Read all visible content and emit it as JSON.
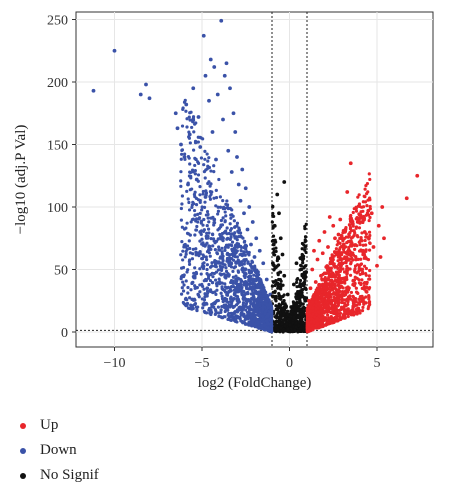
{
  "chart_data": {
    "type": "scatter",
    "title": "",
    "xlabel": "log2 (FoldChange)",
    "ylabel": "−log10 (adj.P Val)",
    "xlim": [
      -12.2,
      8.2
    ],
    "ylim": [
      -12,
      256
    ],
    "xticks": [
      -10,
      -5,
      0,
      5
    ],
    "xtick_labels": [
      "−10",
      "−5",
      "0",
      "5"
    ],
    "yticks": [
      0,
      50,
      100,
      150,
      200,
      250
    ],
    "ytick_labels": [
      "0",
      "50",
      "100",
      "150",
      "200",
      "250"
    ],
    "grid": true,
    "vlines": [
      -1,
      1
    ],
    "hlines": [
      1.3
    ],
    "legend_position": "bottom-left",
    "series": [
      {
        "name": "Up",
        "color": "#e8262b",
        "points": [
          [
            7.3,
            125
          ],
          [
            6.7,
            107
          ],
          [
            5.3,
            100
          ],
          [
            5.1,
            85
          ],
          [
            5.4,
            75
          ],
          [
            5.2,
            60
          ],
          [
            5.0,
            53
          ],
          [
            4.8,
            68
          ],
          [
            4.7,
            95
          ],
          [
            4.5,
            97
          ],
          [
            4.3,
            80
          ],
          [
            4.2,
            65
          ],
          [
            4.1,
            92
          ],
          [
            3.9,
            88
          ],
          [
            3.8,
            58
          ],
          [
            3.6,
            87
          ],
          [
            3.5,
            72
          ],
          [
            3.5,
            135
          ],
          [
            3.4,
            62
          ],
          [
            3.3,
            112
          ],
          [
            3.2,
            82
          ],
          [
            3.1,
            70
          ],
          [
            3.0,
            55
          ],
          [
            2.9,
            90
          ],
          [
            2.8,
            48
          ],
          [
            2.8,
            78
          ],
          [
            2.7,
            62
          ],
          [
            2.6,
            75
          ],
          [
            2.5,
            85
          ],
          [
            2.4,
            58
          ],
          [
            2.3,
            92
          ],
          [
            2.2,
            68
          ],
          [
            2.1,
            52
          ],
          [
            2.0,
            80
          ],
          [
            1.9,
            63
          ],
          [
            1.8,
            45
          ],
          [
            1.7,
            73
          ],
          [
            1.6,
            58
          ],
          [
            1.5,
            40
          ],
          [
            1.4,
            65
          ],
          [
            1.3,
            50
          ],
          [
            1.2,
            35
          ],
          [
            1.1,
            25
          ],
          [
            1.2,
            12
          ],
          [
            1.4,
            20
          ],
          [
            1.6,
            30
          ],
          [
            1.9,
            38
          ],
          [
            2.2,
            42
          ],
          [
            2.6,
            44
          ]
        ]
      },
      {
        "name": "Down",
        "color": "#3a52a8",
        "points": [
          [
            -11.2,
            193
          ],
          [
            -10.0,
            225
          ],
          [
            -8.5,
            190
          ],
          [
            -8.2,
            198
          ],
          [
            -8.0,
            187
          ],
          [
            -6.5,
            175
          ],
          [
            -6.4,
            163
          ],
          [
            -6.2,
            150
          ],
          [
            -6.0,
            140
          ],
          [
            -5.9,
            182
          ],
          [
            -5.7,
            158
          ],
          [
            -5.5,
            195
          ],
          [
            -5.2,
            172
          ],
          [
            -5.1,
            148
          ],
          [
            -4.9,
            237
          ],
          [
            -4.8,
            205
          ],
          [
            -4.6,
            185
          ],
          [
            -4.5,
            218
          ],
          [
            -4.4,
            160
          ],
          [
            -4.3,
            212
          ],
          [
            -4.2,
            138
          ],
          [
            -4.1,
            190
          ],
          [
            -3.9,
            249
          ],
          [
            -3.8,
            170
          ],
          [
            -3.7,
            205
          ],
          [
            -3.6,
            215
          ],
          [
            -3.5,
            145
          ],
          [
            -3.4,
            195
          ],
          [
            -3.3,
            128
          ],
          [
            -3.2,
            175
          ],
          [
            -3.1,
            160
          ],
          [
            -3.0,
            140
          ],
          [
            -2.9,
            118
          ],
          [
            -2.8,
            105
          ],
          [
            -2.7,
            130
          ],
          [
            -2.6,
            95
          ],
          [
            -2.5,
            115
          ],
          [
            -2.4,
            82
          ],
          [
            -2.3,
            100
          ],
          [
            -2.2,
            70
          ],
          [
            -2.1,
            88
          ],
          [
            -2.0,
            60
          ],
          [
            -1.9,
            75
          ],
          [
            -1.8,
            48
          ],
          [
            -1.7,
            65
          ],
          [
            -1.6,
            38
          ],
          [
            -1.5,
            55
          ],
          [
            -1.4,
            28
          ],
          [
            -1.3,
            42
          ],
          [
            -1.2,
            18
          ],
          [
            -1.1,
            30
          ],
          [
            -1.2,
            8
          ],
          [
            -1.5,
            15
          ],
          [
            -1.8,
            22
          ],
          [
            -2.2,
            35
          ],
          [
            -2.7,
            50
          ],
          [
            -3.2,
            62
          ],
          [
            -3.8,
            75
          ],
          [
            -4.3,
            90
          ],
          [
            -4.8,
            108
          ],
          [
            -5.3,
            122
          ],
          [
            -5.8,
            118
          ],
          [
            -4.2,
            55
          ],
          [
            -3.6,
            45
          ],
          [
            -4.7,
            35
          ],
          [
            -5.1,
            80
          ]
        ]
      },
      {
        "name": "No Signif",
        "color": "#111111",
        "points": [
          [
            0.0,
            0.5
          ],
          [
            -0.2,
            2
          ],
          [
            0.3,
            4
          ],
          [
            -0.5,
            8
          ],
          [
            0.6,
            12
          ],
          [
            -0.7,
            18
          ],
          [
            0.8,
            15
          ],
          [
            -0.8,
            28
          ],
          [
            0.9,
            25
          ],
          [
            -0.9,
            40
          ],
          [
            0.9,
            35
          ],
          [
            -0.95,
            55
          ],
          [
            0.95,
            48
          ],
          [
            -0.9,
            70
          ],
          [
            -0.85,
            85
          ],
          [
            -0.7,
            110
          ],
          [
            -0.6,
            95
          ],
          [
            -0.4,
            62
          ],
          [
            -0.3,
            45
          ],
          [
            -0.1,
            30
          ],
          [
            0.1,
            20
          ],
          [
            0.25,
            38
          ],
          [
            -0.3,
            120
          ],
          [
            0.4,
            55
          ],
          [
            -0.5,
            75
          ],
          [
            0.5,
            30
          ]
        ]
      }
    ]
  },
  "legend": {
    "items": [
      {
        "label": "Up",
        "color": "#e8262b"
      },
      {
        "label": "Down",
        "color": "#3a52a8"
      },
      {
        "label": "No Signif",
        "color": "#111111"
      }
    ]
  }
}
